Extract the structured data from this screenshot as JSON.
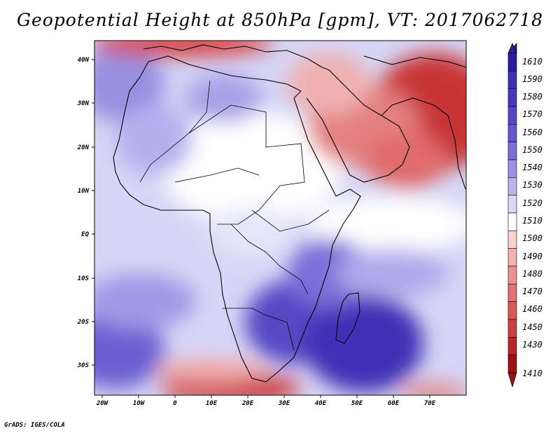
{
  "title": "Geopotential Height at 850hPa [gpm], VT: 2017062718",
  "credit": "GrADS: IGES/COLA",
  "lat_labels": [
    "40N",
    "30N",
    "20N",
    "10N",
    "EQ",
    "10S",
    "20S",
    "30S"
  ],
  "lon_labels": [
    "20W",
    "10W",
    "0",
    "10E",
    "20E",
    "30E",
    "40E",
    "50E",
    "60E",
    "70E"
  ],
  "colorbar": {
    "labels": [
      "1610",
      "1590",
      "1580",
      "1570",
      "1560",
      "1550",
      "1540",
      "1530",
      "1520",
      "1510",
      "1500",
      "1490",
      "1480",
      "1470",
      "1460",
      "1450",
      "1430",
      "1410"
    ],
    "colors": [
      "#2a1e9e",
      "#3a30b4",
      "#4638be",
      "#5548c6",
      "#6458d0",
      "#7a70da",
      "#9a92e4",
      "#b8b4ee",
      "#d8d8f8",
      "#ffffff",
      "#f8d4d4",
      "#f2b2b2",
      "#ea9292",
      "#e27272",
      "#d85858",
      "#cc4040",
      "#b82828",
      "#a01010"
    ]
  }
}
